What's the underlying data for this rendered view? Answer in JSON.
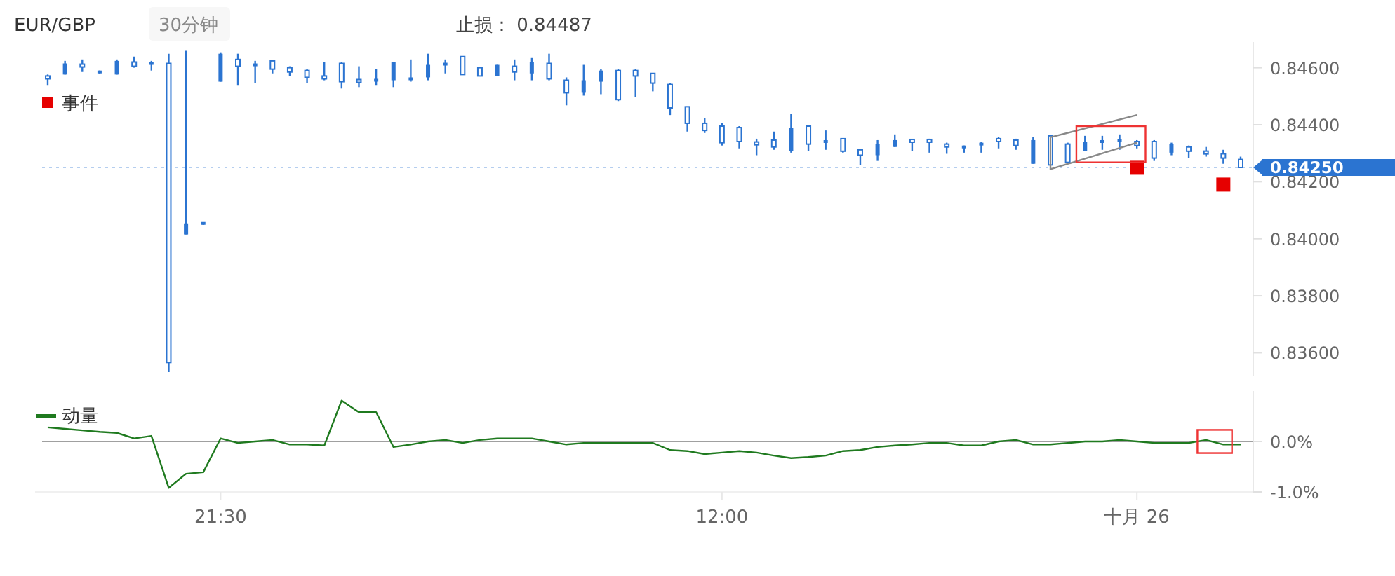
{
  "chart_data": [
    {
      "type": "candlestick",
      "title": "EUR/GBP",
      "subtitle": "30分钟",
      "annotations": [
        "止损： 0.84487"
      ],
      "ref_lines": [
        {
          "axis": "y",
          "value": 0.8425,
          "label": "0.84250",
          "color": "#2b74d1"
        }
      ],
      "ylim": [
        0.8352,
        0.8469
      ],
      "yticks": [
        {
          "value": 0.836,
          "label": "0.83600"
        },
        {
          "value": 0.838,
          "label": "0.83800"
        },
        {
          "value": 0.84,
          "label": "0.84000"
        },
        {
          "value": 0.842,
          "label": "0.84200"
        },
        {
          "value": 0.844,
          "label": "0.84400"
        },
        {
          "value": 0.846,
          "label": "0.84600"
        }
      ],
      "tick_labels": "y",
      "grid": false,
      "legend": "top left",
      "series": [
        {
          "type": "candlestick",
          "color": "#2b74d1",
          "ohlc": [
            [
              0.84571,
              0.84576,
              0.84537,
              0.84561
            ],
            [
              0.84576,
              0.84624,
              0.84576,
              0.84615
            ],
            [
              0.8461,
              0.84629,
              0.84585,
              0.84605
            ],
            [
              0.84585,
              0.8459,
              0.8458,
              0.84585
            ],
            [
              0.84576,
              0.84629,
              0.84576,
              0.84624
            ],
            [
              0.8462,
              0.84639,
              0.846,
              0.84605
            ],
            [
              0.84615,
              0.84624,
              0.8459,
              0.84615
            ],
            [
              0.84615,
              0.84649,
              0.83532,
              0.83566
            ],
            [
              0.84015,
              0.84659,
              0.84015,
              0.84054
            ],
            [
              0.84054,
              0.84054,
              0.84049,
              0.84054
            ],
            [
              0.84551,
              0.84654,
              0.84551,
              0.84649
            ],
            [
              0.84629,
              0.84649,
              0.84537,
              0.84605
            ],
            [
              0.8461,
              0.84624,
              0.84546,
              0.8461
            ],
            [
              0.84624,
              0.84624,
              0.8458,
              0.84595
            ],
            [
              0.846,
              0.84605,
              0.84571,
              0.84585
            ],
            [
              0.8459,
              0.84595,
              0.84546,
              0.84566
            ],
            [
              0.84571,
              0.8462,
              0.84556,
              0.84561
            ],
            [
              0.84615,
              0.8462,
              0.84527,
              0.84551
            ],
            [
              0.84556,
              0.84605,
              0.84532,
              0.84551
            ],
            [
              0.84556,
              0.84595,
              0.84537,
              0.84556
            ],
            [
              0.84556,
              0.8462,
              0.84532,
              0.8462
            ],
            [
              0.84561,
              0.84629,
              0.84551,
              0.84561
            ],
            [
              0.84566,
              0.84649,
              0.84556,
              0.8461
            ],
            [
              0.8461,
              0.84629,
              0.8458,
              0.84615
            ],
            [
              0.84639,
              0.84639,
              0.84576,
              0.84576
            ],
            [
              0.846,
              0.846,
              0.84571,
              0.84571
            ],
            [
              0.84571,
              0.8461,
              0.84571,
              0.8461
            ],
            [
              0.84605,
              0.84629,
              0.84556,
              0.84585
            ],
            [
              0.8458,
              0.84634,
              0.84556,
              0.8462
            ],
            [
              0.84615,
              0.84649,
              0.84556,
              0.84561
            ],
            [
              0.84556,
              0.84566,
              0.84468,
              0.84512
            ],
            [
              0.84512,
              0.8461,
              0.84502,
              0.84556
            ],
            [
              0.84551,
              0.84595,
              0.84507,
              0.8459
            ],
            [
              0.8459,
              0.84595,
              0.84483,
              0.84488
            ],
            [
              0.8459,
              0.84595,
              0.84498,
              0.84571
            ],
            [
              0.8458,
              0.8458,
              0.84517,
              0.84546
            ],
            [
              0.84541,
              0.84546,
              0.84434,
              0.84459
            ],
            [
              0.84463,
              0.84463,
              0.84376,
              0.84405
            ],
            [
              0.84405,
              0.84424,
              0.84371,
              0.8438
            ],
            [
              0.84395,
              0.84405,
              0.84327,
              0.84337
            ],
            [
              0.8439,
              0.84395,
              0.84317,
              0.84341
            ],
            [
              0.84337,
              0.84351,
              0.84293,
              0.84332
            ],
            [
              0.84346,
              0.84376,
              0.84312,
              0.84322
            ],
            [
              0.84307,
              0.84439,
              0.84302,
              0.8439
            ],
            [
              0.84395,
              0.84395,
              0.84307,
              0.84332
            ],
            [
              0.84341,
              0.8438,
              0.84312,
              0.84341
            ],
            [
              0.84351,
              0.84351,
              0.84302,
              0.84307
            ],
            [
              0.84312,
              0.84312,
              0.84259,
              0.84293
            ],
            [
              0.84293,
              0.84346,
              0.84273,
              0.84332
            ],
            [
              0.84322,
              0.84366,
              0.84322,
              0.84346
            ],
            [
              0.84346,
              0.84346,
              0.84307,
              0.84341
            ],
            [
              0.84346,
              0.84351,
              0.84302,
              0.84341
            ],
            [
              0.84332,
              0.84337,
              0.84298,
              0.84322
            ],
            [
              0.84322,
              0.84327,
              0.84302,
              0.84322
            ],
            [
              0.84332,
              0.84341,
              0.84302,
              0.84332
            ],
            [
              0.84351,
              0.84356,
              0.84317,
              0.84341
            ],
            [
              0.84346,
              0.84351,
              0.84312,
              0.84327
            ],
            [
              0.84263,
              0.84356,
              0.84263,
              0.84346
            ],
            [
              0.84361,
              0.84361,
              0.84259,
              0.84259
            ],
            [
              0.84332,
              0.84337,
              0.84263,
              0.84268
            ],
            [
              0.84307,
              0.84361,
              0.84307,
              0.84341
            ],
            [
              0.84341,
              0.84361,
              0.84312,
              0.84341
            ],
            [
              0.84341,
              0.84366,
              0.84312,
              0.84346
            ],
            [
              0.84341,
              0.84346,
              0.84317,
              0.84327
            ],
            [
              0.84341,
              0.84346,
              0.84273,
              0.84283
            ],
            [
              0.84302,
              0.84337,
              0.84293,
              0.84332
            ],
            [
              0.84322,
              0.84327,
              0.84283,
              0.84307
            ],
            [
              0.84307,
              0.84322,
              0.84288,
              0.84298
            ],
            [
              0.84298,
              0.84312,
              0.84263,
              0.84283
            ],
            [
              0.84278,
              0.84288,
              0.84249,
              0.8425
            ]
          ]
        },
        {
          "type": "scatter",
          "name": "事件",
          "color": "#e60000",
          "marker": "square",
          "values": [
            null,
            null,
            null,
            null,
            null,
            null,
            null,
            null,
            null,
            null,
            null,
            null,
            null,
            null,
            null,
            null,
            null,
            null,
            null,
            null,
            null,
            null,
            null,
            null,
            null,
            null,
            null,
            null,
            null,
            null,
            null,
            null,
            null,
            null,
            null,
            null,
            null,
            null,
            null,
            null,
            null,
            null,
            null,
            null,
            null,
            null,
            null,
            null,
            null,
            null,
            null,
            null,
            null,
            null,
            null,
            null,
            null,
            null,
            null,
            null,
            null,
            null,
            null,
            0.84249,
            null,
            null,
            null,
            null,
            0.8419,
            null
          ]
        }
      ]
    },
    {
      "type": "line",
      "categories": [
        null,
        null,
        null,
        null,
        null,
        null,
        null,
        null,
        null,
        null,
        "21:30",
        null,
        null,
        null,
        null,
        null,
        null,
        null,
        null,
        null,
        null,
        null,
        null,
        null,
        null,
        null,
        null,
        null,
        null,
        null,
        null,
        null,
        null,
        null,
        null,
        null,
        null,
        null,
        null,
        "12:00",
        null,
        null,
        null,
        null,
        null,
        null,
        null,
        null,
        null,
        null,
        null,
        null,
        null,
        null,
        null,
        null,
        null,
        null,
        null,
        null,
        null,
        null,
        null,
        "十月 26",
        null,
        null,
        null,
        null,
        null,
        null
      ],
      "ylim": [
        -1.0,
        1.0
      ],
      "yticks": [
        {
          "value": 0,
          "label": "0.0%"
        },
        {
          "value": -1,
          "label": "-1.0%"
        }
      ],
      "grid": "y",
      "legend": "top left",
      "series": [
        {
          "name": "动量",
          "color": "#1f7a1f",
          "values": [
            0.28,
            0.25,
            0.22,
            0.19,
            0.17,
            0.06,
            0.11,
            -0.92,
            -0.64,
            -0.61,
            0.06,
            -0.03,
            0,
            0.03,
            -0.06,
            -0.06,
            -0.08,
            0.81,
            0.58,
            0.58,
            -0.11,
            -0.06,
            0,
            0.03,
            -0.03,
            0.03,
            0.06,
            0.06,
            0.06,
            0,
            -0.06,
            -0.03,
            -0.03,
            -0.03,
            -0.03,
            -0.03,
            -0.17,
            -0.19,
            -0.25,
            -0.22,
            -0.19,
            -0.22,
            -0.28,
            -0.33,
            -0.31,
            -0.28,
            -0.19,
            -0.17,
            -0.11,
            -0.08,
            -0.06,
            -0.03,
            -0.03,
            -0.08,
            -0.08,
            0,
            0.03,
            -0.06,
            -0.06,
            -0.03,
            0,
            0,
            0.03,
            0,
            -0.03,
            -0.03,
            -0.03,
            0.03,
            -0.06,
            -0.06
          ]
        }
      ]
    }
  ]
}
